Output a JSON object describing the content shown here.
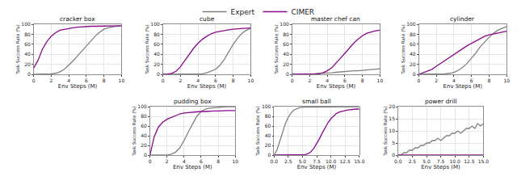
{
  "chart_data": [
    {
      "type": "line",
      "title": "cracker box",
      "x_label": "Env Steps (M)",
      "y_label": "Task Success Rate (%)",
      "legend": "top",
      "grid": true,
      "xlim": [
        0,
        10
      ],
      "xticks": [
        0,
        2,
        4,
        6,
        8,
        10
      ],
      "ylim": [
        0,
        100
      ],
      "yticks": [
        0,
        20,
        40,
        60,
        80,
        100
      ],
      "x": [
        0,
        0.5,
        1,
        1.5,
        2,
        2.5,
        3,
        3.5,
        4,
        4.5,
        5,
        5.5,
        6,
        6.5,
        7,
        7.5,
        8,
        8.5,
        9,
        9.5,
        10
      ],
      "series": [
        {
          "name": "Expert",
          "color": "#808080",
          "values": [
            0,
            0,
            0,
            0,
            1,
            2,
            5,
            10,
            18,
            27,
            37,
            47,
            57,
            67,
            76,
            84,
            90,
            93,
            95,
            96,
            97
          ]
        },
        {
          "name": "CIMER",
          "color": "#8b0a8b",
          "values": [
            12,
            28,
            50,
            65,
            76,
            83,
            88,
            90,
            92,
            93,
            94,
            95,
            95,
            96,
            96,
            96,
            97,
            97,
            97,
            97,
            97
          ]
        }
      ]
    },
    {
      "type": "line",
      "title": "cube",
      "x_label": "Env Steps (M)",
      "y_label": "Task Success Rate (%)",
      "legend": "top",
      "grid": true,
      "xlim": [
        0,
        10
      ],
      "xticks": [
        0,
        2,
        4,
        6,
        8,
        10
      ],
      "ylim": [
        0,
        100
      ],
      "yticks": [
        0,
        20,
        40,
        60,
        80,
        100
      ],
      "x": [
        0,
        0.5,
        1,
        1.5,
        2,
        2.5,
        3,
        3.5,
        4,
        4.5,
        5,
        5.5,
        6,
        6.5,
        7,
        7.5,
        8,
        8.5,
        9,
        9.5,
        10
      ],
      "series": [
        {
          "name": "Expert",
          "color": "#808080",
          "values": [
            0,
            0,
            0,
            0,
            0,
            0,
            0,
            0,
            0,
            1,
            3,
            6,
            10,
            18,
            30,
            45,
            60,
            72,
            82,
            88,
            92
          ]
        },
        {
          "name": "CIMER",
          "color": "#8b0a8b",
          "values": [
            0,
            0,
            2,
            6,
            15,
            28,
            40,
            52,
            62,
            70,
            76,
            81,
            84,
            86,
            88,
            89,
            90,
            91,
            91,
            92,
            92
          ]
        }
      ]
    },
    {
      "type": "line",
      "title": "master chef can",
      "x_label": "Env Steps (M)",
      "y_label": "Task Success Rate (%)",
      "legend": "top",
      "grid": true,
      "xlim": [
        0,
        10
      ],
      "xticks": [
        0,
        2,
        4,
        6,
        8,
        10
      ],
      "ylim": [
        0,
        100
      ],
      "yticks": [
        0,
        20,
        40,
        60,
        80,
        100
      ],
      "x": [
        0,
        0.5,
        1,
        1.5,
        2,
        2.5,
        3,
        3.5,
        4,
        4.5,
        5,
        5.5,
        6,
        6.5,
        7,
        7.5,
        8,
        8.5,
        9,
        9.5,
        10
      ],
      "series": [
        {
          "name": "Expert",
          "color": "#808080",
          "values": [
            0,
            0,
            0,
            0,
            1,
            1,
            2,
            2,
            3,
            3,
            4,
            5,
            5,
            6,
            7,
            7,
            8,
            9,
            10,
            11,
            11
          ]
        },
        {
          "name": "CIMER",
          "color": "#8b0a8b",
          "values": [
            0,
            0,
            0,
            0,
            0,
            0,
            1,
            3,
            7,
            13,
            22,
            32,
            42,
            52,
            62,
            70,
            77,
            82,
            85,
            87,
            88
          ]
        }
      ]
    },
    {
      "type": "line",
      "title": "cylinder",
      "x_label": "Env Steps (M)",
      "y_label": "Task Success Rate (%)",
      "legend": "top",
      "grid": true,
      "xlim": [
        0,
        10
      ],
      "xticks": [
        0,
        2,
        4,
        6,
        8,
        10
      ],
      "ylim": [
        0,
        100
      ],
      "yticks": [
        0,
        20,
        40,
        60,
        80,
        100
      ],
      "x": [
        0,
        0.5,
        1,
        1.5,
        2,
        2.5,
        3,
        3.5,
        4,
        4.5,
        5,
        5.5,
        6,
        6.5,
        7,
        7.5,
        8,
        8.5,
        9,
        9.5,
        10
      ],
      "series": [
        {
          "name": "Expert",
          "color": "#808080",
          "values": [
            0,
            0,
            0,
            0,
            0,
            0,
            1,
            2,
            4,
            8,
            14,
            22,
            32,
            43,
            55,
            65,
            74,
            82,
            88,
            92,
            95
          ]
        },
        {
          "name": "CIMER",
          "color": "#8b0a8b",
          "values": [
            0,
            3,
            6,
            10,
            16,
            22,
            28,
            34,
            40,
            46,
            52,
            57,
            62,
            67,
            72,
            76,
            79,
            81,
            83,
            85,
            86
          ]
        }
      ]
    },
    {
      "type": "line",
      "title": "pudding box",
      "x_label": "Env Steps (M)",
      "y_label": "Task Success Rate (%)",
      "legend": "top",
      "grid": true,
      "xlim": [
        0,
        10
      ],
      "xticks": [
        0,
        2,
        4,
        6,
        8,
        10
      ],
      "ylim": [
        0,
        100
      ],
      "yticks": [
        0,
        20,
        40,
        60,
        80,
        100
      ],
      "x": [
        0,
        0.5,
        1,
        1.5,
        2,
        2.5,
        3,
        3.5,
        4,
        4.5,
        5,
        5.5,
        6,
        6.5,
        7,
        7.5,
        8,
        8.5,
        9,
        9.5,
        10
      ],
      "series": [
        {
          "name": "Expert",
          "color": "#808080",
          "values": [
            0,
            0,
            0,
            0,
            0,
            2,
            6,
            15,
            30,
            48,
            65,
            80,
            90,
            95,
            97,
            98,
            99,
            100,
            100,
            100,
            100
          ]
        },
        {
          "name": "CIMER",
          "color": "#8b0a8b",
          "values": [
            0,
            38,
            58,
            68,
            74,
            78,
            82,
            85,
            87,
            88,
            89,
            90,
            90,
            90,
            91,
            91,
            91,
            92,
            92,
            92,
            92
          ]
        }
      ]
    },
    {
      "type": "line",
      "title": "small ball",
      "x_label": "Env Steps (M)",
      "y_label": "Task Success Rate (%)",
      "legend": "top",
      "grid": true,
      "xlim": [
        0,
        15
      ],
      "xticks": [
        {
          "value": 0,
          "label": "0.0"
        },
        2.5,
        {
          "value": 5,
          "label": "5.0"
        },
        7.5,
        {
          "value": 10,
          "label": "10.0"
        },
        12.5,
        {
          "value": 15,
          "label": "15.0"
        }
      ],
      "ylim": [
        0,
        100
      ],
      "yticks": [
        0,
        20,
        40,
        60,
        80,
        100
      ],
      "x": [
        0,
        0.5,
        1,
        1.5,
        2,
        2.5,
        3,
        3.5,
        4,
        4.5,
        5,
        5.5,
        6,
        6.5,
        7,
        7.5,
        8,
        8.5,
        9,
        9.5,
        10,
        10.5,
        11,
        11.5,
        12,
        12.5,
        13,
        13.5,
        14,
        14.5,
        15
      ],
      "series": [
        {
          "name": "Expert",
          "color": "#808080",
          "values": [
            0,
            10,
            28,
            48,
            65,
            78,
            87,
            93,
            96,
            98,
            99,
            99,
            100,
            100,
            100,
            100,
            100,
            100,
            100,
            100,
            100,
            100,
            100,
            100,
            100,
            100,
            100,
            100,
            100,
            100,
            100
          ]
        },
        {
          "name": "CIMER",
          "color": "#8b0a8b",
          "values": [
            0,
            0,
            0,
            0,
            0,
            0,
            0,
            0,
            0,
            0,
            0,
            1,
            3,
            7,
            14,
            23,
            34,
            46,
            57,
            67,
            75,
            81,
            86,
            89,
            91,
            92,
            93,
            94,
            94,
            95,
            95
          ]
        }
      ]
    },
    {
      "type": "line",
      "title": "power drill",
      "x_label": "Env Steps (M)",
      "y_label": "Task Success Rate (%)",
      "legend": "top",
      "grid": true,
      "xlim": [
        0,
        15
      ],
      "xticks": [
        {
          "value": 0,
          "label": "0.0"
        },
        2.5,
        {
          "value": 5,
          "label": "5.0"
        },
        7.5,
        {
          "value": 10,
          "label": "10.0"
        },
        12.5,
        {
          "value": 15,
          "label": "15.0"
        }
      ],
      "ylim": [
        0,
        20
      ],
      "yticks": [
        0,
        5,
        10,
        15,
        20
      ],
      "x": [
        0,
        0.5,
        1,
        1.5,
        2,
        2.5,
        3,
        3.5,
        4,
        4.5,
        5,
        5.5,
        6,
        6.5,
        7,
        7.5,
        8,
        8.5,
        9,
        9.5,
        10,
        10.5,
        11,
        11.5,
        12,
        12.5,
        13,
        13.5,
        14,
        14.5,
        15
      ],
      "series": [
        {
          "name": "Expert",
          "color": "#808080",
          "values": [
            0,
            0,
            1,
            1,
            2,
            2,
            3,
            3,
            4,
            4,
            5,
            5,
            6,
            6,
            7,
            6,
            7,
            8,
            8,
            9,
            9,
            10,
            9,
            10,
            11,
            11,
            12,
            11,
            13,
            12,
            13
          ]
        },
        {
          "name": "CIMER",
          "color": "#8b0a8b",
          "values": [
            0,
            0,
            0,
            0,
            0,
            0,
            0,
            0,
            0,
            0,
            0,
            0,
            0,
            0,
            0,
            0,
            0,
            0,
            0,
            0,
            0,
            0,
            0,
            0,
            0,
            0,
            0,
            0,
            0,
            0,
            0
          ]
        }
      ]
    }
  ]
}
